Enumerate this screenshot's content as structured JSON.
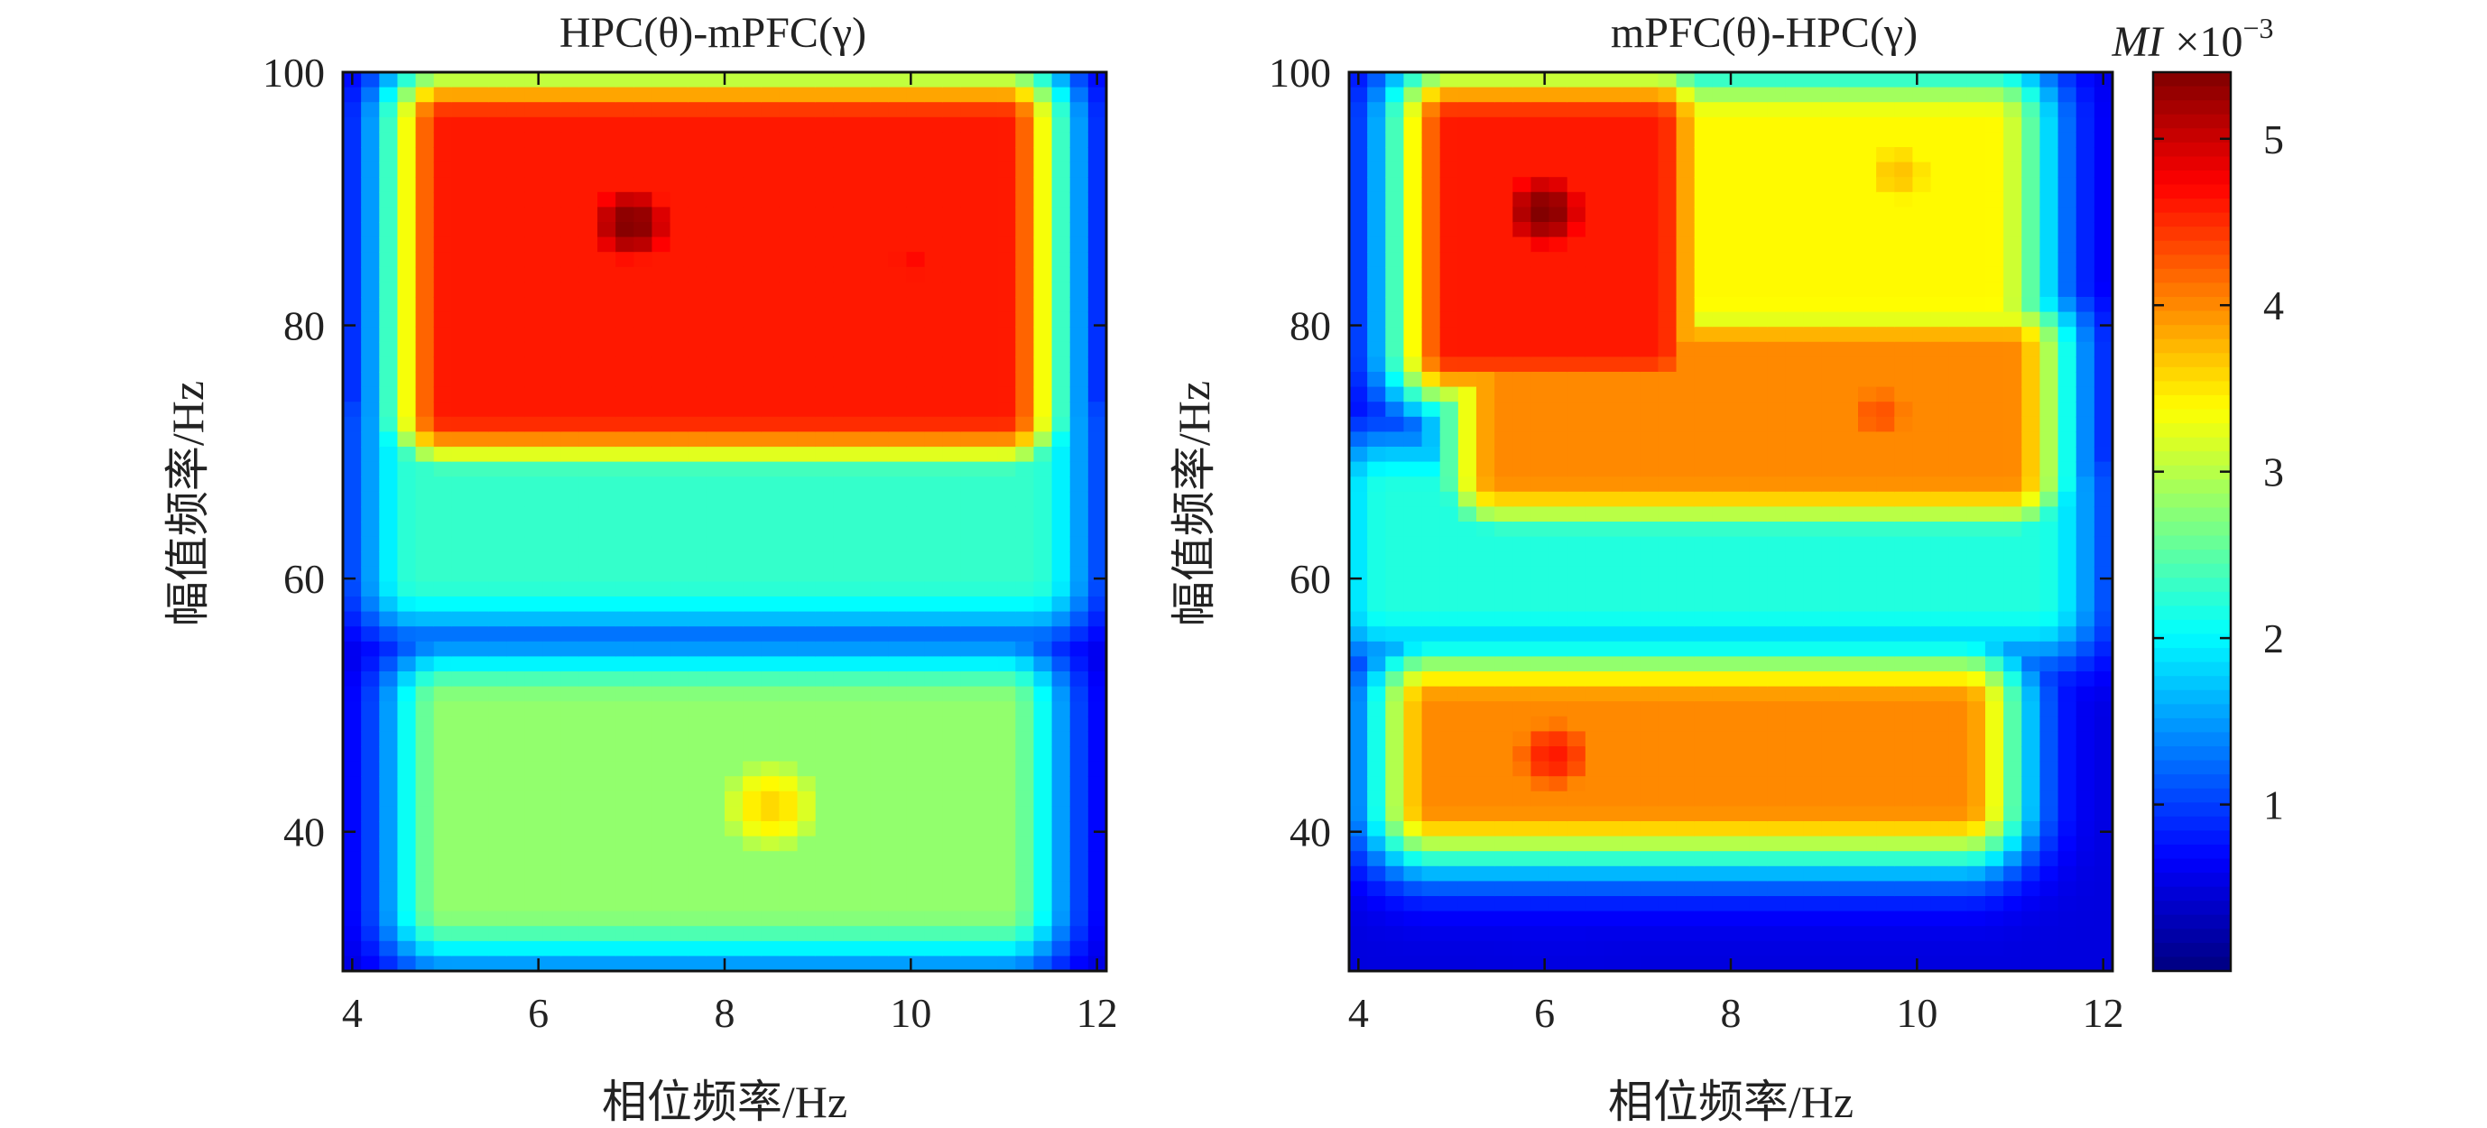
{
  "chart_data": [
    {
      "type": "heatmap",
      "title": "HPC(θ)-mPFC(γ)",
      "xlabel": "相位频率/Hz",
      "ylabel": "幅值频率/Hz",
      "xlim": [
        3.9,
        12.1
      ],
      "ylim": [
        29,
        100
      ],
      "x_ticks": [
        4,
        6,
        8,
        10,
        12
      ],
      "y_ticks": [
        40,
        60,
        80,
        100
      ],
      "x_tick_labels": [
        "4",
        "6",
        "8",
        "10",
        "12"
      ],
      "y_tick_labels": [
        "40",
        "60",
        "80",
        "100"
      ],
      "value_units": "MI ×10⁻³",
      "background_level": 0.4,
      "regions": [
        {
          "x_range": [
            5.0,
            11.0
          ],
          "y_range": [
            73,
            96
          ],
          "peak": 4.6
        },
        {
          "x_center": 7.0,
          "y_center": 88,
          "peak": 5.4
        },
        {
          "x_center": 10.0,
          "y_center": 85,
          "peak": 4.7
        },
        {
          "x_range": [
            4.7,
            11.3
          ],
          "y_range": [
            60,
            72
          ],
          "peak": 2.3
        },
        {
          "x_range": [
            5.0,
            11.0
          ],
          "y_range": [
            34,
            50
          ],
          "peak": 2.8
        },
        {
          "x_center": 8.5,
          "y_center": 42,
          "peak": 3.6
        }
      ]
    },
    {
      "type": "heatmap",
      "title": "mPFC(θ)-HPC(γ)",
      "xlabel": "相位频率/Hz",
      "ylabel": "幅值频率/Hz",
      "xlim": [
        3.9,
        12.1
      ],
      "ylim": [
        29,
        100
      ],
      "x_ticks": [
        4,
        6,
        8,
        10,
        12
      ],
      "y_ticks": [
        40,
        60,
        80,
        100
      ],
      "x_tick_labels": [
        "4",
        "6",
        "8",
        "10",
        "12"
      ],
      "y_tick_labels": [
        "40",
        "60",
        "80",
        "100"
      ],
      "value_units": "MI ×10⁻³",
      "background_level": 0.5,
      "regions": [
        {
          "x_center": 6.0,
          "y_center": 89,
          "peak": 5.4
        },
        {
          "x_range": [
            5.0,
            7.2
          ],
          "y_range": [
            78,
            96
          ],
          "peak": 4.6
        },
        {
          "x_range": [
            7.0,
            10.8
          ],
          "y_range": [
            82,
            96
          ],
          "peak": 3.4
        },
        {
          "x_center": 8.8,
          "y_center": 85,
          "peak": 2.9
        },
        {
          "x_center": 9.8,
          "y_center": 92,
          "peak": 3.7
        },
        {
          "x_range": [
            5.5,
            11.0
          ],
          "y_range": [
            68,
            78
          ],
          "peak": 4.0
        },
        {
          "x_center": 9.6,
          "y_center": 73,
          "peak": 4.3
        },
        {
          "x_range": [
            4.3,
            11.3
          ],
          "y_range": [
            58,
            67
          ],
          "peak": 2.2
        },
        {
          "x_range": [
            4.8,
            10.5
          ],
          "y_range": [
            42,
            50
          ],
          "peak": 4.0
        },
        {
          "x_center": 6.1,
          "y_center": 46,
          "peak": 4.6
        }
      ]
    }
  ],
  "colorbar": {
    "title_var": "MI",
    "title_scale": "×10",
    "title_exp": "−3",
    "min": 0,
    "max": 5.4,
    "ticks": [
      1,
      2,
      3,
      4,
      5
    ],
    "tick_labels": [
      "1",
      "2",
      "3",
      "4",
      "5"
    ],
    "colormap": "jet"
  }
}
